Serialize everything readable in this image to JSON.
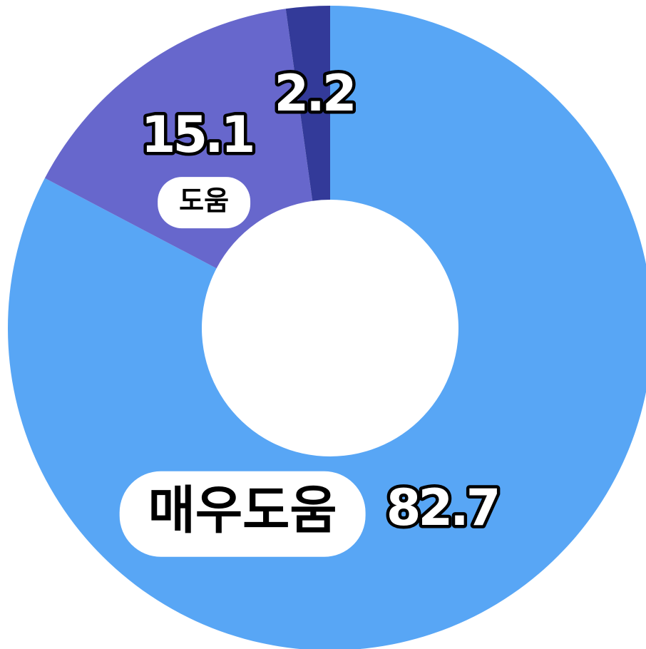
{
  "chart_data": {
    "type": "donut",
    "categories": [
      "매우도움",
      "도움",
      null
    ],
    "values": [
      82.7,
      15.1,
      2.2
    ],
    "colors": [
      "#58a6f5",
      "#6767cc",
      "#333a99"
    ]
  }
}
